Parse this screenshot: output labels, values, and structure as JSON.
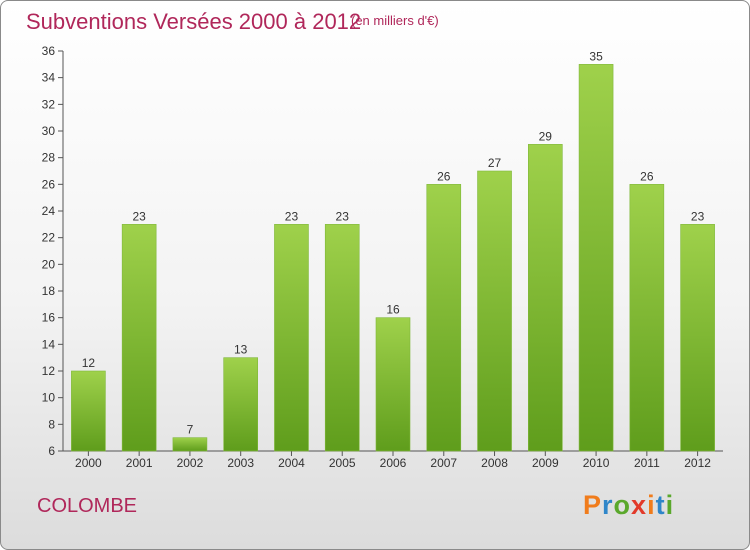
{
  "header": {
    "title": "Subventions Versées 2000 à 2012",
    "unit_note": "(en milliers d'€)"
  },
  "footer": {
    "commune": "COLOMBE",
    "logo_text": "Proxiti"
  },
  "colors": {
    "title": "#b0275a",
    "bar_light": "#9fd14b",
    "bar_dark": "#5f9d1c",
    "logo_letters": [
      "#f07c1c",
      "#2f86c9",
      "#5aa82c",
      "#e23a2a",
      "#f07c1c",
      "#2f86c9",
      "#5aa82c"
    ]
  },
  "chart_data": {
    "type": "bar",
    "title": "Subventions Versées 2000 à 2012",
    "subtitle": "(en milliers d'€)",
    "categories": [
      "2000",
      "2001",
      "2002",
      "2003",
      "2004",
      "2005",
      "2006",
      "2007",
      "2008",
      "2009",
      "2010",
      "2011",
      "2012"
    ],
    "values": [
      12,
      23,
      7,
      13,
      23,
      23,
      16,
      26,
      27,
      29,
      35,
      26,
      23
    ],
    "ylim": [
      6,
      36
    ],
    "yticks": [
      6,
      8,
      10,
      12,
      14,
      16,
      18,
      20,
      22,
      24,
      26,
      28,
      30,
      32,
      34,
      36
    ],
    "grid": false,
    "data_labels": true
  }
}
